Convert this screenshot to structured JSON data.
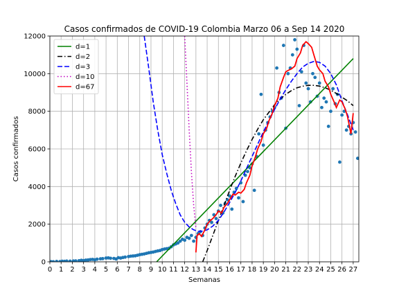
{
  "chart_data": {
    "type": "scatter",
    "title": "Casos confirmados de COVID-19 Colombia Marzo 06 a Sep 14 2020",
    "xlabel": "Semanas",
    "ylabel": "Casos confirmados",
    "xlim": [
      0,
      27.5
    ],
    "ylim": [
      0,
      12000
    ],
    "grid": true,
    "legend_position": "top-left",
    "x_ticks": [
      0,
      1,
      2,
      3,
      4,
      5,
      6,
      7,
      8,
      9,
      10,
      11,
      12,
      13,
      14,
      15,
      16,
      17,
      18,
      19,
      20,
      21,
      22,
      23,
      24,
      25,
      26,
      27
    ],
    "y_ticks": [
      0,
      2000,
      4000,
      6000,
      8000,
      10000,
      12000
    ],
    "scatter": {
      "name": "",
      "color": "#1f77b4",
      "points": [
        [
          0.1,
          10
        ],
        [
          0.3,
          5
        ],
        [
          0.6,
          20
        ],
        [
          0.9,
          15
        ],
        [
          1.1,
          30
        ],
        [
          1.3,
          25
        ],
        [
          1.5,
          40
        ],
        [
          1.8,
          35
        ],
        [
          2.1,
          45
        ],
        [
          2.3,
          50
        ],
        [
          2.6,
          60
        ],
        [
          2.8,
          80
        ],
        [
          3.0,
          70
        ],
        [
          3.2,
          90
        ],
        [
          3.4,
          100
        ],
        [
          3.6,
          120
        ],
        [
          3.8,
          130
        ],
        [
          4.0,
          110
        ],
        [
          4.2,
          140
        ],
        [
          4.5,
          160
        ],
        [
          4.7,
          170
        ],
        [
          5.0,
          200
        ],
        [
          5.2,
          210
        ],
        [
          5.4,
          190
        ],
        [
          5.7,
          180
        ],
        [
          5.9,
          150
        ],
        [
          6.1,
          220
        ],
        [
          6.3,
          200
        ],
        [
          6.5,
          230
        ],
        [
          6.7,
          250
        ],
        [
          7.0,
          280
        ],
        [
          7.2,
          300
        ],
        [
          7.4,
          310
        ],
        [
          7.6,
          320
        ],
        [
          7.8,
          350
        ],
        [
          8.0,
          380
        ],
        [
          8.2,
          400
        ],
        [
          8.4,
          420
        ],
        [
          8.6,
          450
        ],
        [
          8.8,
          480
        ],
        [
          9.0,
          500
        ],
        [
          9.2,
          520
        ],
        [
          9.4,
          550
        ],
        [
          9.6,
          580
        ],
        [
          9.8,
          600
        ],
        [
          10.0,
          650
        ],
        [
          10.2,
          680
        ],
        [
          10.4,
          700
        ],
        [
          10.6,
          720
        ],
        [
          10.8,
          800
        ],
        [
          11.0,
          900
        ],
        [
          11.2,
          950
        ],
        [
          11.4,
          1000
        ],
        [
          11.6,
          1100
        ],
        [
          11.8,
          1200
        ],
        [
          12.0,
          1150
        ],
        [
          12.2,
          1300
        ],
        [
          12.4,
          1250
        ],
        [
          12.6,
          1400
        ],
        [
          12.8,
          1100
        ],
        [
          13.0,
          1300
        ],
        [
          13.2,
          1500
        ],
        [
          13.4,
          1600
        ],
        [
          13.6,
          1400
        ],
        [
          13.8,
          1800
        ],
        [
          14.0,
          2000
        ],
        [
          14.2,
          2200
        ],
        [
          14.4,
          2100
        ],
        [
          14.6,
          2500
        ],
        [
          14.8,
          2300
        ],
        [
          15.0,
          2700
        ],
        [
          15.2,
          3000
        ],
        [
          15.4,
          2600
        ],
        [
          15.6,
          3100
        ],
        [
          15.8,
          3300
        ],
        [
          16.0,
          3500
        ],
        [
          16.2,
          2800
        ],
        [
          16.4,
          3700
        ],
        [
          16.6,
          3900
        ],
        [
          16.8,
          3400
        ],
        [
          17.0,
          4200
        ],
        [
          17.2,
          3200
        ],
        [
          17.4,
          4600
        ],
        [
          17.6,
          4800
        ],
        [
          17.8,
          5000
        ],
        [
          18.0,
          5200
        ],
        [
          18.2,
          3800
        ],
        [
          18.4,
          5600
        ],
        [
          18.6,
          6800
        ],
        [
          18.8,
          8900
        ],
        [
          19.0,
          6200
        ],
        [
          19.2,
          7000
        ],
        [
          19.4,
          7400
        ],
        [
          19.6,
          7700
        ],
        [
          19.8,
          8000
        ],
        [
          20.0,
          8200
        ],
        [
          20.2,
          10300
        ],
        [
          20.4,
          9000
        ],
        [
          20.6,
          8700
        ],
        [
          20.8,
          11500
        ],
        [
          21.0,
          7100
        ],
        [
          21.2,
          10000
        ],
        [
          21.4,
          10300
        ],
        [
          21.6,
          11000
        ],
        [
          21.8,
          11800
        ],
        [
          22.0,
          11300
        ],
        [
          22.2,
          8300
        ],
        [
          22.4,
          10100
        ],
        [
          22.6,
          11500
        ],
        [
          22.8,
          9500
        ],
        [
          23.0,
          9200
        ],
        [
          23.2,
          8500
        ],
        [
          23.4,
          10000
        ],
        [
          23.6,
          9800
        ],
        [
          23.8,
          8800
        ],
        [
          24.0,
          9500
        ],
        [
          24.2,
          8200
        ],
        [
          24.4,
          8700
        ],
        [
          24.6,
          8500
        ],
        [
          24.8,
          7200
        ],
        [
          25.0,
          8000
        ],
        [
          25.2,
          9200
        ],
        [
          25.4,
          8400
        ],
        [
          25.6,
          8900
        ],
        [
          25.8,
          5300
        ],
        [
          26.0,
          7800
        ],
        [
          26.2,
          8000
        ],
        [
          26.4,
          7000
        ],
        [
          26.6,
          7200
        ],
        [
          26.8,
          6800
        ],
        [
          27.0,
          7400
        ],
        [
          27.2,
          6900
        ],
        [
          27.4,
          5500
        ]
      ]
    },
    "series": [
      {
        "name": "d=1",
        "color": "#008000",
        "style": "solid",
        "x": [
          9.5,
          27.0
        ],
        "y": [
          0,
          10800
        ]
      },
      {
        "name": "d=2",
        "color": "#000000",
        "style": "dashdot",
        "x": [
          13.6,
          14.0,
          14.5,
          15.0,
          15.5,
          16.0,
          16.5,
          17.0,
          17.5,
          18.0,
          18.5,
          19.0,
          19.5,
          20.0,
          20.5,
          21.0,
          21.5,
          22.0,
          22.5,
          23.0,
          23.5,
          24.0,
          24.5,
          25.0,
          25.5,
          26.0,
          26.5,
          27.0
        ],
        "y": [
          0,
          600,
          1400,
          2200,
          3000,
          3800,
          4550,
          5250,
          5900,
          6500,
          7050,
          7550,
          7950,
          8350,
          8650,
          8900,
          9100,
          9250,
          9330,
          9380,
          9380,
          9340,
          9250,
          9120,
          8950,
          8750,
          8550,
          8300
        ]
      },
      {
        "name": "d=3",
        "color": "#0000ff",
        "style": "dashed",
        "x": [
          8.4,
          8.8,
          9.2,
          9.6,
          10.0,
          10.4,
          10.8,
          11.2,
          11.6,
          12.0,
          12.4,
          12.8,
          13.2,
          13.6,
          14.0,
          14.5,
          15.0,
          15.5,
          16.0,
          16.5,
          17.0,
          17.5,
          18.0,
          18.5,
          19.0,
          19.5,
          20.0,
          20.5,
          21.0,
          21.5,
          22.0,
          22.5,
          23.0,
          23.5,
          24.0,
          24.5,
          25.0,
          25.5,
          26.0,
          26.5,
          27.0
        ],
        "y": [
          12000,
          10300,
          8500,
          7000,
          5700,
          4700,
          3800,
          3100,
          2500,
          2100,
          1850,
          1700,
          1620,
          1630,
          1700,
          1900,
          2200,
          2650,
          3150,
          3700,
          4300,
          4950,
          5600,
          6250,
          6900,
          7500,
          8100,
          8650,
          9150,
          9600,
          10000,
          10350,
          10550,
          10650,
          10600,
          10400,
          10000,
          9400,
          8550,
          7800,
          7000
        ]
      },
      {
        "name": "d=10",
        "color": "#c000c0",
        "style": "dotted",
        "x": [
          12.0,
          12.2,
          12.4,
          12.6,
          12.8,
          13.0
        ],
        "y": [
          12000,
          9500,
          7000,
          4800,
          3000,
          1800
        ]
      },
      {
        "name": "d=67",
        "color": "#ff0000",
        "style": "solid",
        "x": [
          13.0,
          13.1,
          13.3,
          13.5,
          13.8,
          14.0,
          14.3,
          14.5,
          14.8,
          15.0,
          15.3,
          15.5,
          15.8,
          16.0,
          16.3,
          16.5,
          16.8,
          17.0,
          17.3,
          17.5,
          17.8,
          18.0,
          18.3,
          18.5,
          18.8,
          19.0,
          19.3,
          19.5,
          19.8,
          20.0,
          20.3,
          20.5,
          20.8,
          21.0,
          21.3,
          21.5,
          21.8,
          22.0,
          22.3,
          22.5,
          22.8,
          23.0,
          23.3,
          23.5,
          23.8,
          24.0,
          24.3,
          24.5,
          24.8,
          25.0,
          25.3,
          25.5,
          25.8,
          26.0,
          26.3,
          26.5,
          26.8,
          27.0
        ],
        "y": [
          500,
          1400,
          1500,
          1350,
          1700,
          2000,
          2200,
          2300,
          2500,
          2700,
          2600,
          2900,
          3100,
          3300,
          3600,
          3550,
          3700,
          3650,
          3850,
          4200,
          4600,
          5100,
          5600,
          6000,
          6400,
          6800,
          7100,
          7500,
          7900,
          8300,
          8700,
          9300,
          9800,
          10100,
          10200,
          10250,
          10400,
          10800,
          11100,
          11500,
          11700,
          11600,
          11400,
          11000,
          10400,
          10200,
          10000,
          9600,
          9300,
          8900,
          8500,
          8200,
          8600,
          8500,
          8100,
          7700,
          6800,
          7900
        ]
      }
    ]
  }
}
